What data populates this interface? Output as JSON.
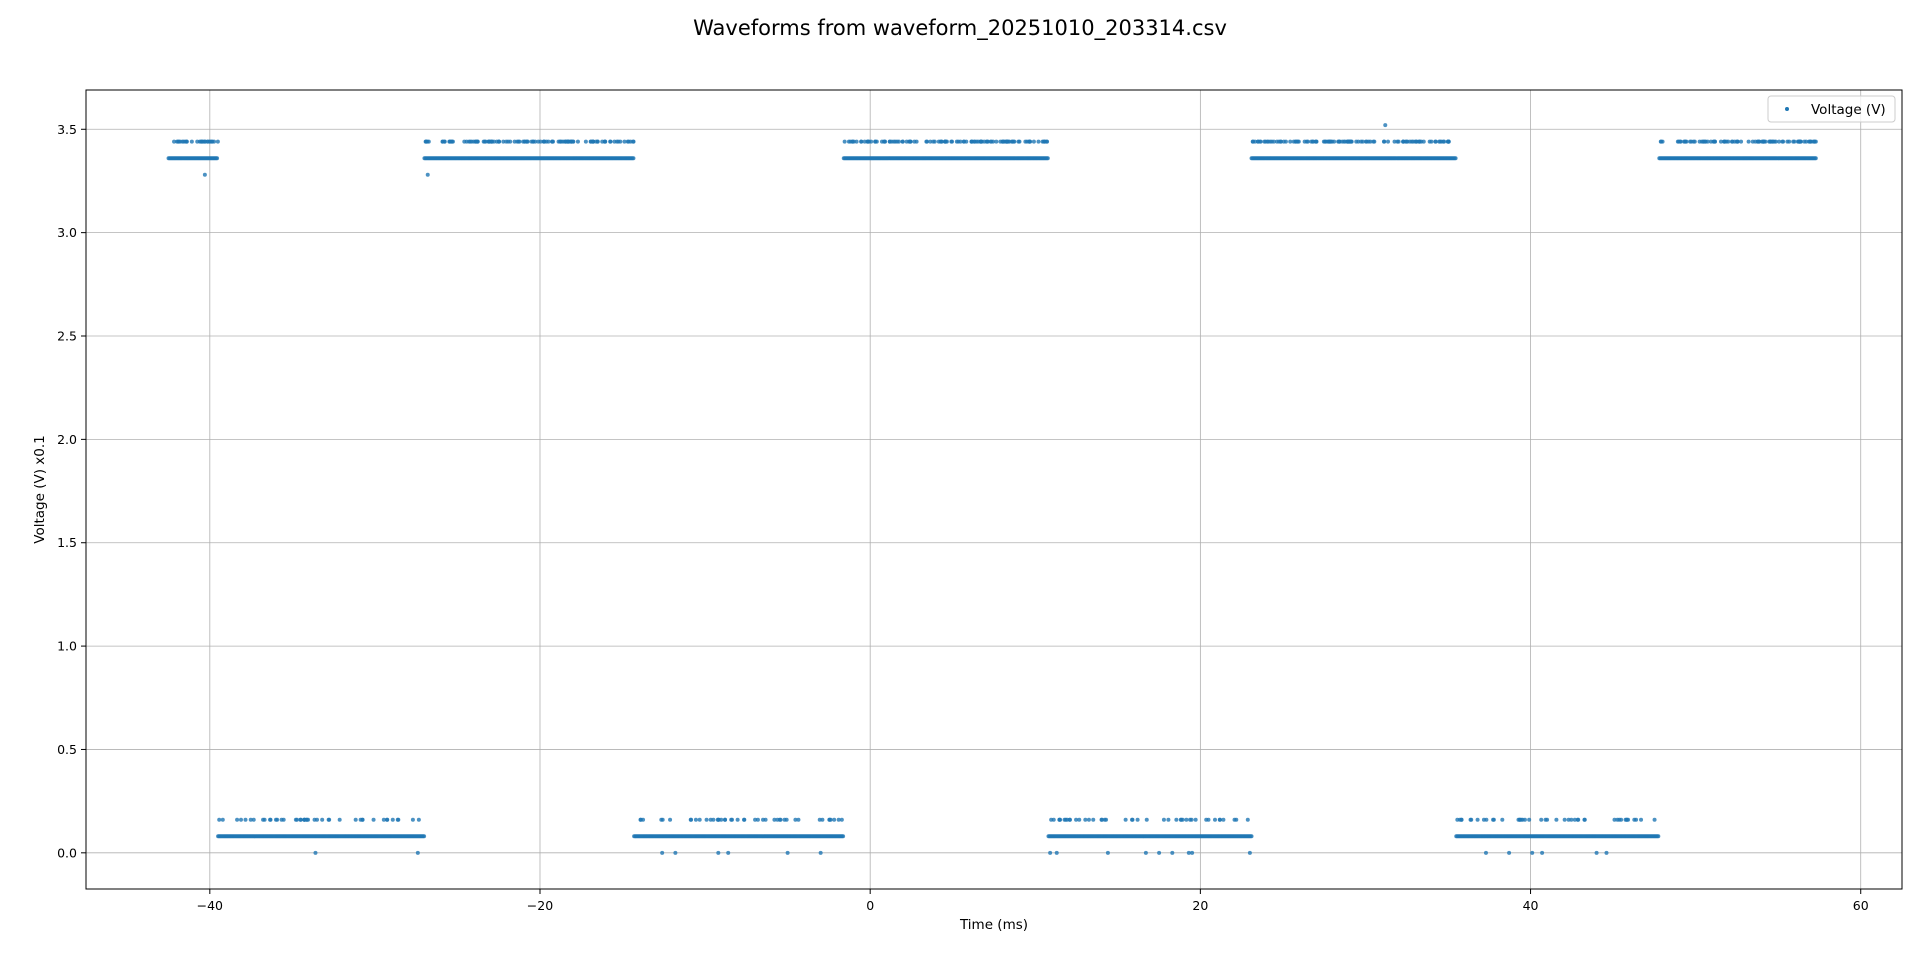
{
  "chart_data": {
    "type": "scatter",
    "title": "Waveforms from waveform_20251010_203314.csv",
    "xlabel": "Time (ms)",
    "ylabel": "Voltage (V) x0.1",
    "xlim": [
      -47.5,
      62.5
    ],
    "ylim": [
      -0.175,
      3.69
    ],
    "xticks": [
      -40,
      -20,
      0,
      20,
      40,
      60
    ],
    "yticks": [
      0.0,
      0.5,
      1.0,
      1.5,
      2.0,
      2.5,
      3.0,
      3.5
    ],
    "xtick_labels": [
      "−40",
      "−20",
      "0",
      "20",
      "40",
      "60"
    ],
    "ytick_labels": [
      "0.0",
      "0.5",
      "1.0",
      "1.5",
      "2.0",
      "2.5",
      "3.0",
      "3.5"
    ],
    "grid": true,
    "legend_position": "top-right",
    "series": [
      {
        "name": "Voltage (V)",
        "color": "#1f77b4",
        "segments": [
          {
            "level": "high",
            "x_start": -42.5,
            "x_end": -39.5,
            "base": 3.36,
            "upper": 3.44
          },
          {
            "level": "low",
            "x_start": -39.5,
            "x_end": -27.0,
            "base": 0.08,
            "upper": 0.16
          },
          {
            "level": "high",
            "x_start": -27.0,
            "x_end": -14.3,
            "base": 3.36,
            "upper": 3.44
          },
          {
            "level": "low",
            "x_start": -14.3,
            "x_end": -1.6,
            "base": 0.08,
            "upper": 0.16
          },
          {
            "level": "high",
            "x_start": -1.6,
            "x_end": 10.8,
            "base": 3.36,
            "upper": 3.44
          },
          {
            "level": "low",
            "x_start": 10.8,
            "x_end": 23.1,
            "base": 0.08,
            "upper": 0.16
          },
          {
            "level": "high",
            "x_start": 23.1,
            "x_end": 35.5,
            "base": 3.36,
            "upper": 3.44
          },
          {
            "level": "low",
            "x_start": 35.5,
            "x_end": 47.8,
            "base": 0.08,
            "upper": 0.16
          },
          {
            "level": "high",
            "x_start": 47.8,
            "x_end": 57.3,
            "base": 3.36,
            "upper": 3.44
          }
        ],
        "outliers": [
          {
            "x": -40.3,
            "y": 3.28
          },
          {
            "x": -26.8,
            "y": 3.28
          },
          {
            "x": 31.2,
            "y": 3.52
          },
          {
            "x": -33.6,
            "y": 0.0
          },
          {
            "x": -27.4,
            "y": 0.0
          },
          {
            "x": -12.6,
            "y": 0.0
          },
          {
            "x": -11.8,
            "y": 0.0
          },
          {
            "x": -9.2,
            "y": 0.0
          },
          {
            "x": -8.6,
            "y": 0.0
          },
          {
            "x": -5.0,
            "y": 0.0
          },
          {
            "x": -3.0,
            "y": 0.0
          },
          {
            "x": 10.9,
            "y": 0.0
          },
          {
            "x": 11.3,
            "y": 0.0
          },
          {
            "x": 14.4,
            "y": 0.0
          },
          {
            "x": 16.7,
            "y": 0.0
          },
          {
            "x": 17.5,
            "y": 0.0
          },
          {
            "x": 18.3,
            "y": 0.0
          },
          {
            "x": 19.3,
            "y": 0.0
          },
          {
            "x": 19.5,
            "y": 0.0
          },
          {
            "x": 23.0,
            "y": 0.0
          },
          {
            "x": 37.3,
            "y": 0.0
          },
          {
            "x": 38.7,
            "y": 0.0
          },
          {
            "x": 40.1,
            "y": 0.0
          },
          {
            "x": 40.7,
            "y": 0.0
          },
          {
            "x": 44.0,
            "y": 0.0
          },
          {
            "x": 44.6,
            "y": 0.0
          }
        ]
      }
    ]
  }
}
